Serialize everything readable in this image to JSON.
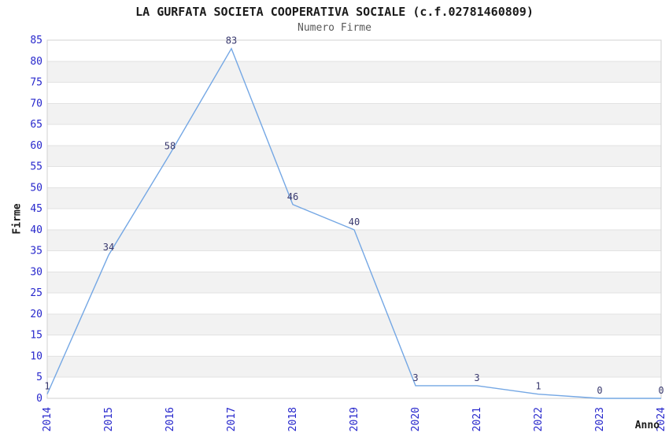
{
  "chart_data": {
    "type": "line",
    "title": "LA GURFATA SOCIETA COOPERATIVA SOCIALE (c.f.02781460809)",
    "subtitle": "Numero Firme",
    "xlabel": "Anno",
    "ylabel": "Firme",
    "x": [
      2014,
      2015,
      2016,
      2017,
      2018,
      2019,
      2020,
      2021,
      2022,
      2023,
      2024
    ],
    "series": [
      {
        "name": "Numero Firme",
        "values": [
          1,
          34,
          58,
          83,
          46,
          40,
          3,
          3,
          1,
          0,
          0
        ]
      }
    ],
    "point_labels": [
      "1",
      "34",
      "58",
      "83",
      "46",
      "40",
      "3",
      "3",
      "1",
      "0",
      "0"
    ],
    "ylim": [
      0,
      85
    ],
    "ytick_step": 5,
    "grid": true,
    "legend": false,
    "banding": "alternating horizontal bands every 5 units",
    "colors": {
      "line": "#74a7e4",
      "tick_label": "#2727cc",
      "point_label": "#38386e",
      "band_gray": "#f2f2f2",
      "gridline": "#e2e2e2",
      "plot_border": "#d0d0d0",
      "title": "#1a1a1a",
      "subtitle": "#595959",
      "background": "#ffffff"
    }
  }
}
